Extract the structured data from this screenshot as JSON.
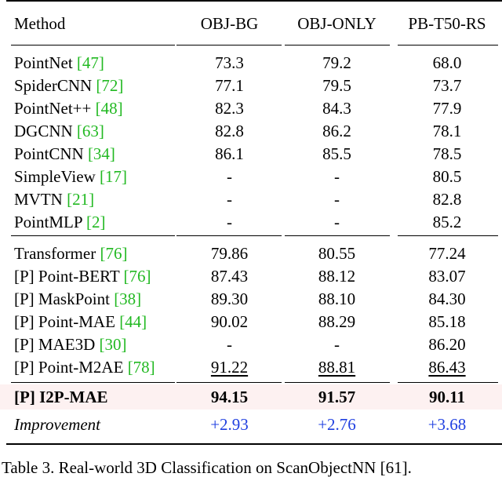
{
  "header": {
    "method": "Method",
    "c1": "OBJ-BG",
    "c2": "OBJ-ONLY",
    "c3": "PB-T50-RS"
  },
  "group1": [
    {
      "name": "PointNet ",
      "ref": "[47]",
      "c1": "73.3",
      "c2": "79.2",
      "c3": "68.0"
    },
    {
      "name": "SpiderCNN ",
      "ref": "[72]",
      "c1": "77.1",
      "c2": "79.5",
      "c3": "73.7"
    },
    {
      "name": "PointNet++ ",
      "ref": "[48]",
      "c1": "82.3",
      "c2": "84.3",
      "c3": "77.9"
    },
    {
      "name": "DGCNN ",
      "ref": "[63]",
      "c1": "82.8",
      "c2": "86.2",
      "c3": "78.1"
    },
    {
      "name": "PointCNN ",
      "ref": "[34]",
      "c1": "86.1",
      "c2": "85.5",
      "c3": "78.5"
    },
    {
      "name": "SimpleView ",
      "ref": "[17]",
      "c1": "-",
      "c2": "-",
      "c3": "80.5"
    },
    {
      "name": "MVTN ",
      "ref": "[21]",
      "c1": "-",
      "c2": "-",
      "c3": "82.8"
    },
    {
      "name": "PointMLP ",
      "ref": "[2]",
      "c1": "-",
      "c2": "-",
      "c3": "85.2"
    }
  ],
  "group2": [
    {
      "name": "Transformer ",
      "ref": "[76]",
      "c1": "79.86",
      "c2": "80.55",
      "c3": "77.24"
    },
    {
      "name": "[P] Point-BERT ",
      "ref": "[76]",
      "c1": "87.43",
      "c2": "88.12",
      "c3": "83.07"
    },
    {
      "name": "[P] MaskPoint ",
      "ref": "[38]",
      "c1": "89.30",
      "c2": "88.10",
      "c3": "84.30"
    },
    {
      "name": "[P] Point-MAE ",
      "ref": "[44]",
      "c1": "90.02",
      "c2": "88.29",
      "c3": "85.18"
    },
    {
      "name": "[P] MAE3D ",
      "ref": "[30]",
      "c1": "-",
      "c2": "-",
      "c3": "86.20"
    },
    {
      "name": "[P] Point-M2AE ",
      "ref": "[78]",
      "c1": "91.22",
      "c2": "88.81",
      "c3": "86.43"
    }
  ],
  "ours": {
    "name": "[P] I2P-MAE",
    "c1": "94.15",
    "c2": "91.57",
    "c3": "90.11"
  },
  "improvement": {
    "name": "Improvement",
    "c1": "+2.93",
    "c2": "+2.76",
    "c3": "+3.68"
  },
  "caption": "Table 3. Real-world 3D Classification on ScanObjectNN [61]."
}
